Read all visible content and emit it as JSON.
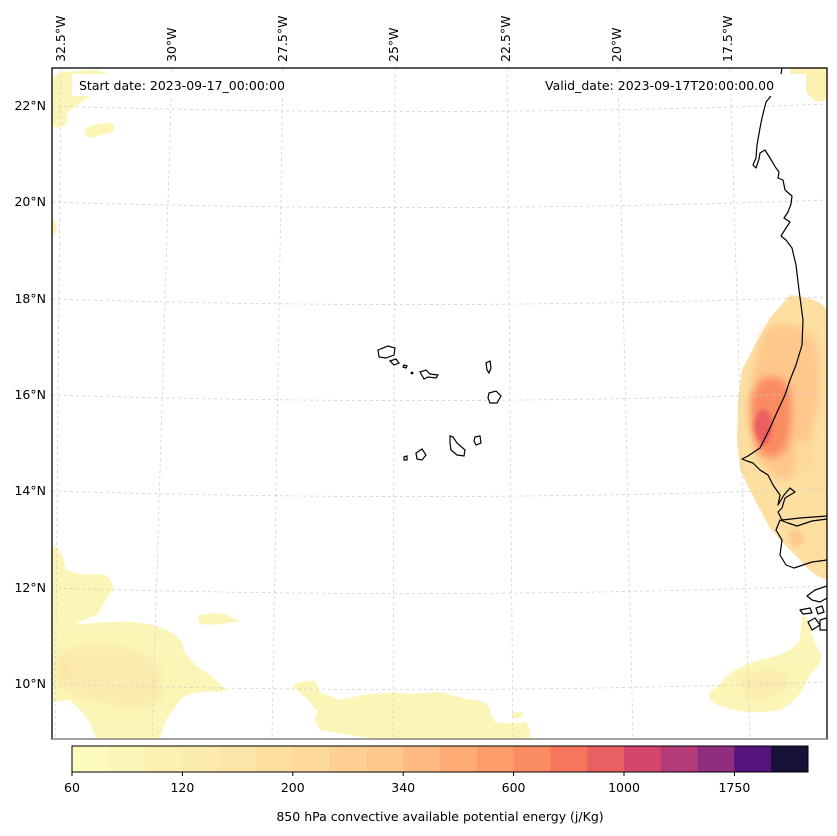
{
  "map": {
    "start_date_label": "Start date: 2023-09-17_00:00:00",
    "valid_date_label": "Valid_date: 2023-09-17T20:00:00.00",
    "lon_ticks": [
      "32.5°W",
      "30°W",
      "27.5°W",
      "25°W",
      "22.5°W",
      "20°W",
      "17.5°W"
    ],
    "lat_ticks": [
      "22°N",
      "20°N",
      "18°N",
      "16°N",
      "14°N",
      "12°N",
      "10°N"
    ],
    "gridlines": true,
    "extent": {
      "lon": [
        -32.6,
        -15.0
      ],
      "lat": [
        8.9,
        22.8
      ]
    },
    "field": "850 hPa convective available potential energy",
    "features": [
      "Cabo Verde islands",
      "West African coastline (Mauritania, Senegal, Gambia, Guinea-Bissau)"
    ]
  },
  "colorbar": {
    "label": "850 hPa convective available potential energy (j/Kg)",
    "tick_labels": [
      "60",
      "120",
      "200",
      "340",
      "600",
      "1000",
      "1750"
    ],
    "tick_segment_index": [
      0,
      3,
      6,
      9,
      12,
      15,
      18
    ],
    "colors": [
      "#fcfbbd",
      "#fbf6b7",
      "#fbf1b2",
      "#fbecad",
      "#fce5a6",
      "#fcdfa1",
      "#fdd89b",
      "#fdcf93",
      "#fec78b",
      "#feba80",
      "#feac74",
      "#fd9c69",
      "#fb8b60",
      "#f6765d",
      "#ea5f5f",
      "#d4466b",
      "#b43a78",
      "#8f2d7e",
      "#55147b",
      "#151137"
    ]
  }
}
